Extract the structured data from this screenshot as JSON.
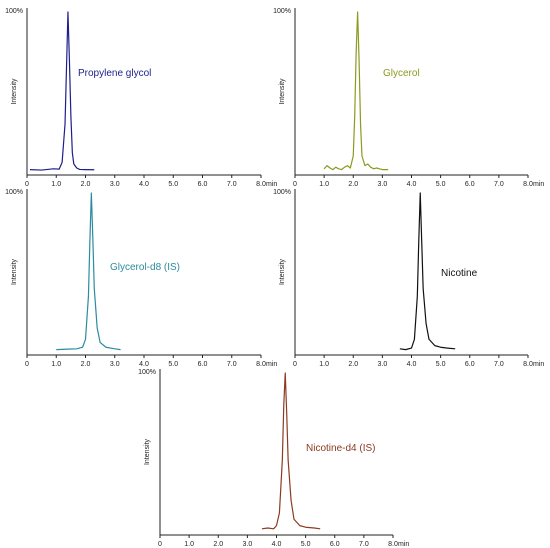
{
  "chart_data": [
    {
      "type": "line",
      "compound": "Propylene glycol",
      "color": "#1e1e8c",
      "ylabel": "Intensity",
      "y_max_label": "100%",
      "x_unit": "min",
      "xlim": [
        0,
        8
      ],
      "ylim": [
        0,
        100
      ],
      "x_ticks": [
        "0",
        "1.0",
        "2.0",
        "3.0",
        "4.0",
        "5.0",
        "6.0",
        "7.0",
        "8.0"
      ],
      "x": [
        0.1,
        0.5,
        0.9,
        1.1,
        1.2,
        1.3,
        1.35,
        1.4,
        1.45,
        1.5,
        1.55,
        1.6,
        1.7,
        1.8,
        2.0,
        2.3
      ],
      "y": [
        1.5,
        1.2,
        2.0,
        1.8,
        6,
        30,
        65,
        100,
        70,
        35,
        12,
        5,
        2.5,
        1.6,
        1.5,
        1.4
      ]
    },
    {
      "type": "line",
      "compound": "Glycerol",
      "color": "#8c9a1e",
      "ylabel": "Intensity",
      "y_max_label": "100%",
      "x_unit": "min",
      "xlim": [
        0,
        8
      ],
      "ylim": [
        0,
        100
      ],
      "x_ticks": [
        "0",
        "1.0",
        "2.0",
        "3.0",
        "4.0",
        "5.0",
        "6.0",
        "7.0",
        "8.0"
      ],
      "x": [
        1.0,
        1.1,
        1.2,
        1.3,
        1.4,
        1.5,
        1.6,
        1.7,
        1.8,
        1.9,
        2.0,
        2.05,
        2.1,
        2.15,
        2.2,
        2.25,
        2.3,
        2.4,
        2.5,
        2.6,
        2.7,
        2.8,
        2.9,
        3.0,
        3.2
      ],
      "y": [
        2,
        4,
        2.5,
        1.5,
        3,
        2,
        1.5,
        3,
        4,
        2.5,
        10,
        35,
        75,
        100,
        70,
        30,
        10,
        4,
        5,
        3,
        2,
        2.5,
        2,
        1.5,
        1.5
      ]
    },
    {
      "type": "line",
      "compound": "Glycerol-d8 (IS)",
      "color": "#2a8ca0",
      "ylabel": "Intensity",
      "y_max_label": "100%",
      "x_unit": "min",
      "xlim": [
        0,
        8
      ],
      "ylim": [
        0,
        100
      ],
      "x_ticks": [
        "0",
        "1.0",
        "2.0",
        "3.0",
        "4.0",
        "5.0",
        "6.0",
        "7.0",
        "8.0"
      ],
      "x": [
        1.0,
        1.4,
        1.7,
        1.9,
        2.0,
        2.1,
        2.15,
        2.2,
        2.25,
        2.3,
        2.4,
        2.5,
        2.7,
        3.0,
        3.2
      ],
      "y": [
        1.5,
        1.8,
        2.0,
        3,
        8,
        35,
        70,
        100,
        72,
        40,
        15,
        6,
        3,
        2,
        1.5
      ]
    },
    {
      "type": "line",
      "compound": "Nicotine",
      "color": "#111111",
      "ylabel": "Intensity",
      "y_max_label": "100%",
      "x_unit": "min",
      "xlim": [
        0,
        8
      ],
      "ylim": [
        0,
        100
      ],
      "x_ticks": [
        "0",
        "1.0",
        "2.0",
        "3.0",
        "4.0",
        "5.0",
        "6.0",
        "7.0",
        "8.0"
      ],
      "x": [
        3.6,
        3.8,
        4.0,
        4.1,
        4.2,
        4.25,
        4.3,
        4.35,
        4.4,
        4.5,
        4.6,
        4.8,
        5.0,
        5.2,
        5.5
      ],
      "y": [
        2,
        1.5,
        2.5,
        8,
        35,
        70,
        100,
        70,
        40,
        18,
        8,
        4,
        3,
        2.5,
        2
      ]
    },
    {
      "type": "line",
      "compound": "Nicotine-d4 (IS)",
      "color": "#8c3a22",
      "ylabel": "Intensity",
      "y_max_label": "100%",
      "x_unit": "min",
      "xlim": [
        0,
        8
      ],
      "ylim": [
        0,
        100
      ],
      "x_ticks": [
        "0",
        "1.0",
        "2.0",
        "3.0",
        "4.0",
        "5.0",
        "6.0",
        "7.0",
        "8.0"
      ],
      "x": [
        3.5,
        3.7,
        3.9,
        4.0,
        4.1,
        4.2,
        4.25,
        4.3,
        4.35,
        4.4,
        4.5,
        4.6,
        4.8,
        5.0,
        5.3,
        5.5
      ],
      "y": [
        2,
        2.5,
        2,
        4,
        12,
        45,
        80,
        100,
        75,
        45,
        20,
        8,
        4,
        3,
        2.5,
        2
      ]
    }
  ]
}
